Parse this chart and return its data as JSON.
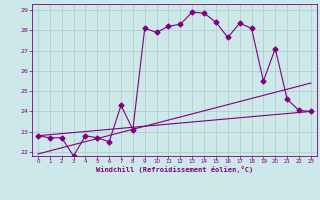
{
  "xlabel": "Windchill (Refroidissement éolien,°C)",
  "background_color": "#cce8e8",
  "line_color": "#800080",
  "grid_color": "#aacccc",
  "xlim": [
    -0.5,
    23.5
  ],
  "ylim": [
    21.8,
    29.3
  ],
  "yticks": [
    22,
    23,
    24,
    25,
    26,
    27,
    28,
    29
  ],
  "xticks": [
    0,
    1,
    2,
    3,
    4,
    5,
    6,
    7,
    8,
    9,
    10,
    11,
    12,
    13,
    14,
    15,
    16,
    17,
    18,
    19,
    20,
    21,
    22,
    23
  ],
  "series1_x": [
    0,
    1,
    2,
    3,
    4,
    5,
    6,
    7,
    8,
    9,
    10,
    11,
    12,
    13,
    14,
    15,
    16,
    17,
    18,
    19,
    20,
    21,
    22,
    23
  ],
  "series1_y": [
    22.8,
    22.7,
    22.7,
    21.8,
    22.8,
    22.7,
    22.5,
    24.3,
    23.1,
    28.1,
    27.9,
    28.2,
    28.3,
    28.9,
    28.85,
    28.4,
    27.65,
    28.35,
    28.1,
    25.5,
    27.1,
    24.6,
    24.05,
    24.0
  ],
  "series2_x": [
    0,
    23
  ],
  "series2_y": [
    22.8,
    24.0
  ],
  "series3_x": [
    0,
    23
  ],
  "series3_y": [
    21.9,
    25.4
  ],
  "marker": "D",
  "markersize": 2.5,
  "linewidth": 0.8
}
